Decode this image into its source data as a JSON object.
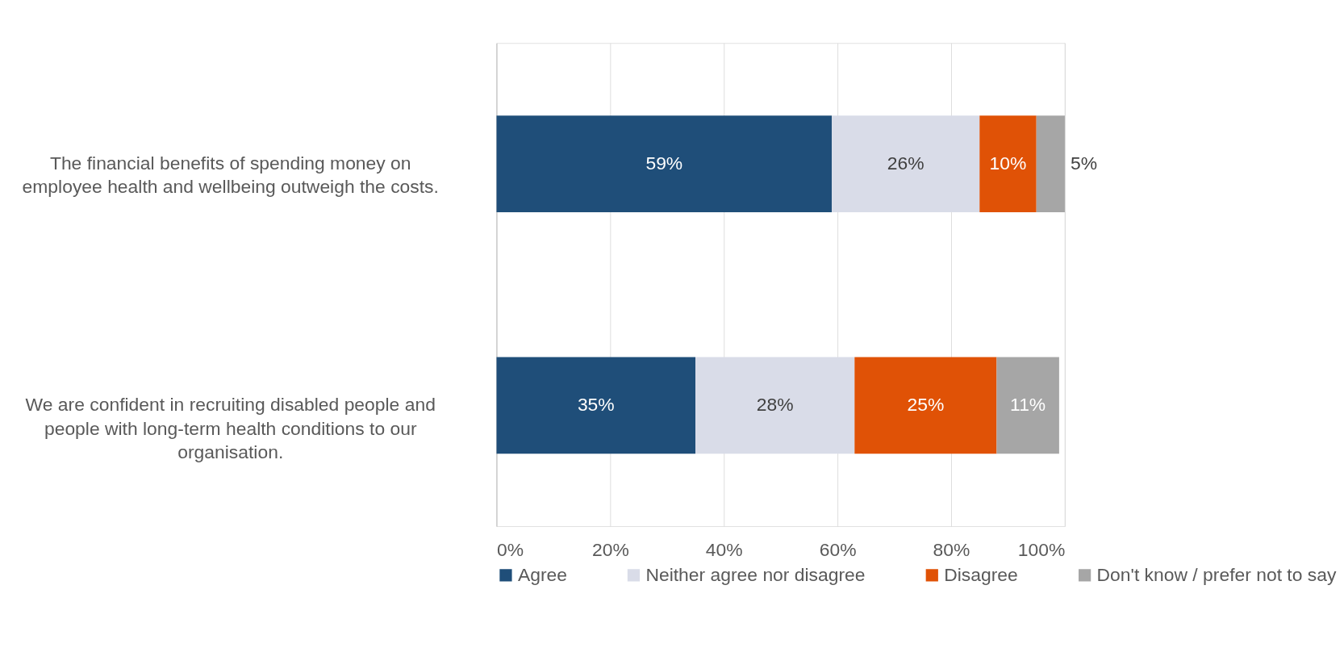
{
  "chart_data": {
    "type": "bar",
    "orientation": "horizontal",
    "stacked": true,
    "categories": [
      "The financial benefits of spending money on employee health and wellbeing outweigh the costs.",
      "We are confident in recruiting disabled people and people with long-term health conditions to our organisation."
    ],
    "series": [
      {
        "name": "Agree",
        "color": "#1f4e79",
        "values": [
          59,
          35
        ],
        "value_labels": [
          "59%",
          "35%"
        ]
      },
      {
        "name": "Neither agree nor disagree",
        "color": "#d9dce8",
        "values": [
          26,
          28
        ],
        "value_labels": [
          "26%",
          "28%"
        ]
      },
      {
        "name": "Disagree",
        "color": "#e05206",
        "values": [
          10,
          25
        ],
        "value_labels": [
          "10%",
          "25%"
        ]
      },
      {
        "name": "Don't know / prefer not to say",
        "color": "#a6a6a6",
        "values": [
          5,
          11
        ],
        "value_labels": [
          "5%",
          "11%"
        ]
      }
    ],
    "xlim": [
      0,
      100
    ],
    "xticks": [
      {
        "value": 0,
        "label": "0%"
      },
      {
        "value": 20,
        "label": "20%"
      },
      {
        "value": 40,
        "label": "40%"
      },
      {
        "value": 60,
        "label": "60%"
      },
      {
        "value": 80,
        "label": "80%"
      },
      {
        "value": 100,
        "label": "100%"
      }
    ],
    "grid": "x",
    "legend": "bottom"
  }
}
